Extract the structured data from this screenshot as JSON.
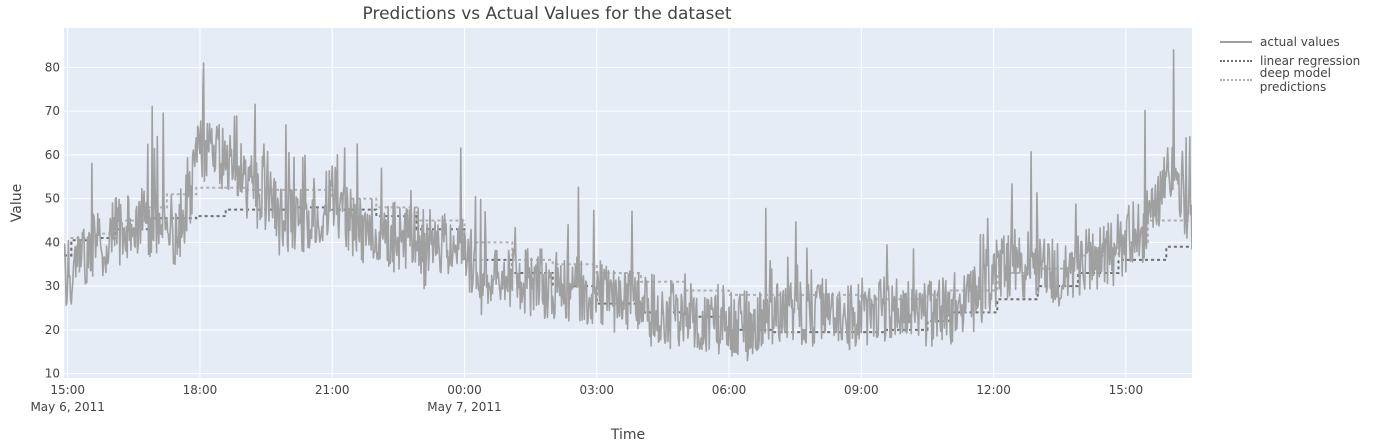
{
  "chart_data": {
    "type": "line",
    "title": "Predictions vs Actual Values for the dataset",
    "xlabel": "Time",
    "ylabel": "Value",
    "x_range": [
      "2011-05-06 14:55",
      "2011-05-07 16:30"
    ],
    "ylim": [
      9,
      89
    ],
    "y_ticks": [
      10,
      20,
      30,
      40,
      50,
      60,
      70,
      80
    ],
    "x_ticks": [
      {
        "t": "2011-05-06 15:00",
        "label": "15:00",
        "sublabel": "May 6, 2011"
      },
      {
        "t": "2011-05-06 18:00",
        "label": "18:00",
        "sublabel": ""
      },
      {
        "t": "2011-05-06 21:00",
        "label": "21:00",
        "sublabel": ""
      },
      {
        "t": "2011-05-07 00:00",
        "label": "00:00",
        "sublabel": "May 7, 2011"
      },
      {
        "t": "2011-05-07 03:00",
        "label": "03:00",
        "sublabel": ""
      },
      {
        "t": "2011-05-07 06:00",
        "label": "06:00",
        "sublabel": ""
      },
      {
        "t": "2011-05-07 09:00",
        "label": "09:00",
        "sublabel": ""
      },
      {
        "t": "2011-05-07 12:00",
        "label": "12:00",
        "sublabel": ""
      },
      {
        "t": "2011-05-07 15:00",
        "label": "15:00",
        "sublabel": ""
      }
    ],
    "grid": true,
    "legend_position": "top-right",
    "series": [
      {
        "name": "actual values",
        "style": "solid",
        "color": "#a0a0a0",
        "points": [
          [
            "2011-05-06 15:00",
            33
          ],
          [
            "2011-05-06 15:30",
            38
          ],
          [
            "2011-05-06 16:00",
            42
          ],
          [
            "2011-05-06 16:30",
            44
          ],
          [
            "2011-05-06 17:00",
            45
          ],
          [
            "2011-05-06 17:30",
            42
          ],
          [
            "2011-05-06 18:00",
            60
          ],
          [
            "2011-05-06 18:30",
            60
          ],
          [
            "2011-05-06 19:00",
            54
          ],
          [
            "2011-05-06 19:30",
            50
          ],
          [
            "2011-05-06 20:00",
            45
          ],
          [
            "2011-05-06 20:30",
            46
          ],
          [
            "2011-05-06 21:00",
            50
          ],
          [
            "2011-05-06 21:30",
            44
          ],
          [
            "2011-05-06 22:00",
            42
          ],
          [
            "2011-05-06 22:30",
            41
          ],
          [
            "2011-05-06 23:00",
            40
          ],
          [
            "2011-05-06 23:30",
            39
          ],
          [
            "2011-05-07 00:00",
            36
          ],
          [
            "2011-05-07 00:30",
            34
          ],
          [
            "2011-05-07 01:00",
            32
          ],
          [
            "2011-05-07 01:30",
            31
          ],
          [
            "2011-05-07 02:00",
            30
          ],
          [
            "2011-05-07 02:30",
            29
          ],
          [
            "2011-05-07 03:00",
            28
          ],
          [
            "2011-05-07 03:30",
            27
          ],
          [
            "2011-05-07 04:00",
            26
          ],
          [
            "2011-05-07 04:30",
            25
          ],
          [
            "2011-05-07 05:00",
            24
          ],
          [
            "2011-05-07 05:30",
            23
          ],
          [
            "2011-05-07 06:00",
            22
          ],
          [
            "2011-05-07 06:30",
            22
          ],
          [
            "2011-05-07 07:00",
            23
          ],
          [
            "2011-05-07 07:30",
            24
          ],
          [
            "2011-05-07 08:00",
            24
          ],
          [
            "2011-05-07 08:30",
            23
          ],
          [
            "2011-05-07 09:00",
            24
          ],
          [
            "2011-05-07 09:30",
            25
          ],
          [
            "2011-05-07 10:00",
            25
          ],
          [
            "2011-05-07 10:30",
            24
          ],
          [
            "2011-05-07 11:00",
            25
          ],
          [
            "2011-05-07 11:30",
            26
          ],
          [
            "2011-05-07 12:00",
            33
          ],
          [
            "2011-05-07 12:30",
            36
          ],
          [
            "2011-05-07 13:00",
            34
          ],
          [
            "2011-05-07 13:30",
            33
          ],
          [
            "2011-05-07 14:00",
            35
          ],
          [
            "2011-05-07 14:30",
            36
          ],
          [
            "2011-05-07 15:00",
            40
          ],
          [
            "2011-05-07 15:30",
            44
          ],
          [
            "2011-05-07 16:00",
            58
          ],
          [
            "2011-05-07 16:30",
            45
          ]
        ],
        "notable_values": [
          [
            "2011-05-06 18:05",
            81
          ],
          [
            "2011-05-07 06:25",
            13
          ],
          [
            "2011-05-07 16:05",
            84
          ]
        ]
      },
      {
        "name": "linear regression",
        "style": "dotted",
        "color": "#707070",
        "points": [
          [
            "2011-05-06 14:55",
            37
          ],
          [
            "2011-05-06 15:05",
            40.5
          ],
          [
            "2011-05-06 15:40",
            41
          ],
          [
            "2011-05-06 16:05",
            43
          ],
          [
            "2011-05-06 16:50",
            45.5
          ],
          [
            "2011-05-06 17:55",
            46
          ],
          [
            "2011-05-06 18:35",
            47.5
          ],
          [
            "2011-05-06 20:00",
            48
          ],
          [
            "2011-05-06 21:00",
            47.5
          ],
          [
            "2011-05-06 22:00",
            46
          ],
          [
            "2011-05-06 22:55",
            43
          ],
          [
            "2011-05-07 00:00",
            36
          ],
          [
            "2011-05-07 01:05",
            33
          ],
          [
            "2011-05-07 02:00",
            30
          ],
          [
            "2011-05-07 03:00",
            26
          ],
          [
            "2011-05-07 04:00",
            24
          ],
          [
            "2011-05-07 05:00",
            23
          ],
          [
            "2011-05-07 06:00",
            20
          ],
          [
            "2011-05-07 07:00",
            19.5
          ],
          [
            "2011-05-07 08:30",
            19.5
          ],
          [
            "2011-05-07 09:30",
            20
          ],
          [
            "2011-05-07 10:30",
            22
          ],
          [
            "2011-05-07 11:00",
            24
          ],
          [
            "2011-05-07 12:05",
            27
          ],
          [
            "2011-05-07 13:00",
            30
          ],
          [
            "2011-05-07 13:55",
            33
          ],
          [
            "2011-05-07 14:50",
            36
          ],
          [
            "2011-05-07 15:55",
            39
          ],
          [
            "2011-05-07 16:30",
            39
          ]
        ]
      },
      {
        "name": "deep model predictions",
        "style": "dotted",
        "color": "#b0b0b0",
        "points": [
          [
            "2011-05-06 14:55",
            37
          ],
          [
            "2011-05-06 15:05",
            41
          ],
          [
            "2011-05-06 15:40",
            42
          ],
          [
            "2011-05-06 16:05",
            45
          ],
          [
            "2011-05-06 16:50",
            48
          ],
          [
            "2011-05-06 17:15",
            51
          ],
          [
            "2011-05-06 17:55",
            52.5
          ],
          [
            "2011-05-06 19:00",
            52
          ],
          [
            "2011-05-06 20:20",
            52
          ],
          [
            "2011-05-06 21:00",
            50
          ],
          [
            "2011-05-06 22:00",
            48
          ],
          [
            "2011-05-06 22:55",
            45
          ],
          [
            "2011-05-07 00:00",
            40
          ],
          [
            "2011-05-07 01:05",
            36
          ],
          [
            "2011-05-07 02:00",
            35
          ],
          [
            "2011-05-07 03:00",
            33
          ],
          [
            "2011-05-07 04:00",
            31
          ],
          [
            "2011-05-07 05:00",
            29
          ],
          [
            "2011-05-07 06:00",
            28
          ],
          [
            "2011-05-07 07:00",
            28
          ],
          [
            "2011-05-07 09:00",
            27
          ],
          [
            "2011-05-07 10:30",
            28
          ],
          [
            "2011-05-07 11:00",
            29
          ],
          [
            "2011-05-07 12:05",
            33
          ],
          [
            "2011-05-07 13:00",
            34
          ],
          [
            "2011-05-07 13:55",
            37
          ],
          [
            "2011-05-07 14:50",
            40
          ],
          [
            "2011-05-07 15:30",
            45
          ],
          [
            "2011-05-07 16:30",
            45
          ]
        ]
      }
    ]
  }
}
